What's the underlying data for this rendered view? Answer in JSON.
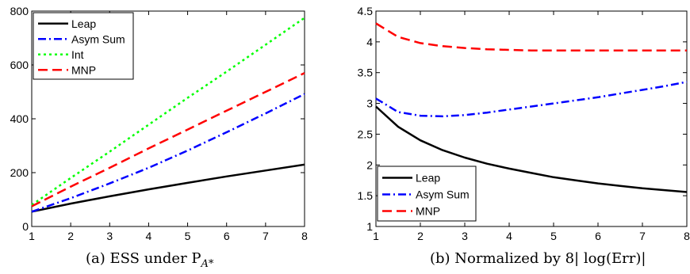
{
  "chart_data": [
    {
      "type": "line",
      "caption": "(a) ESS under P",
      "caption_sub": "A*",
      "xlim": [
        1,
        8
      ],
      "ylim": [
        0,
        800
      ],
      "xticks": [
        "1",
        "2",
        "3",
        "4",
        "5",
        "6",
        "7",
        "8"
      ],
      "yticks": [
        "0",
        "200",
        "400",
        "600",
        "800"
      ],
      "legend_position": "top-left",
      "x": [
        1,
        2,
        3,
        4,
        5,
        6,
        7,
        8
      ],
      "series": [
        {
          "name": "Leap",
          "color": "#000000",
          "dash": "solid",
          "values": [
            55,
            85,
            112,
            138,
            162,
            186,
            208,
            230
          ]
        },
        {
          "name": "Asym Sum",
          "color": "#0000ff",
          "dash": "dashdot",
          "values": [
            55,
            105,
            160,
            218,
            282,
            350,
            420,
            492
          ]
        },
        {
          "name": "Int",
          "color": "#00ff00",
          "dash": "dotted",
          "values": [
            80,
            180,
            278,
            378,
            478,
            575,
            675,
            775
          ]
        },
        {
          "name": "MNP",
          "color": "#ff0000",
          "dash": "dashed",
          "values": [
            75,
            148,
            218,
            290,
            360,
            430,
            500,
            570
          ]
        }
      ]
    },
    {
      "type": "line",
      "caption": "(b) Normalized by 8| log(Err)|",
      "xlim": [
        1,
        8
      ],
      "ylim": [
        1,
        4.5
      ],
      "xticks": [
        "1",
        "2",
        "3",
        "4",
        "5",
        "6",
        "7",
        "8"
      ],
      "yticks": [
        "1",
        "1.5",
        "2",
        "2.5",
        "3",
        "3.5",
        "4",
        "4.5"
      ],
      "legend_position": "bottom-left",
      "x": [
        1,
        1.5,
        2,
        2.5,
        3,
        3.5,
        4,
        4.5,
        5,
        5.5,
        6,
        6.5,
        7,
        7.5,
        8
      ],
      "series": [
        {
          "name": "Leap",
          "color": "#000000",
          "dash": "solid",
          "values": [
            2.95,
            2.62,
            2.4,
            2.24,
            2.12,
            2.02,
            1.94,
            1.87,
            1.8,
            1.75,
            1.7,
            1.66,
            1.62,
            1.59,
            1.56
          ]
        },
        {
          "name": "Asym Sum",
          "color": "#0000ff",
          "dash": "dashdot",
          "values": [
            3.08,
            2.86,
            2.8,
            2.79,
            2.81,
            2.85,
            2.9,
            2.95,
            3.0,
            3.05,
            3.1,
            3.16,
            3.22,
            3.28,
            3.35
          ]
        },
        {
          "name": "MNP",
          "color": "#ff0000",
          "dash": "dashed",
          "values": [
            4.3,
            4.08,
            3.98,
            3.93,
            3.9,
            3.88,
            3.87,
            3.86,
            3.86,
            3.86,
            3.86,
            3.86,
            3.86,
            3.86,
            3.86
          ]
        }
      ]
    }
  ]
}
